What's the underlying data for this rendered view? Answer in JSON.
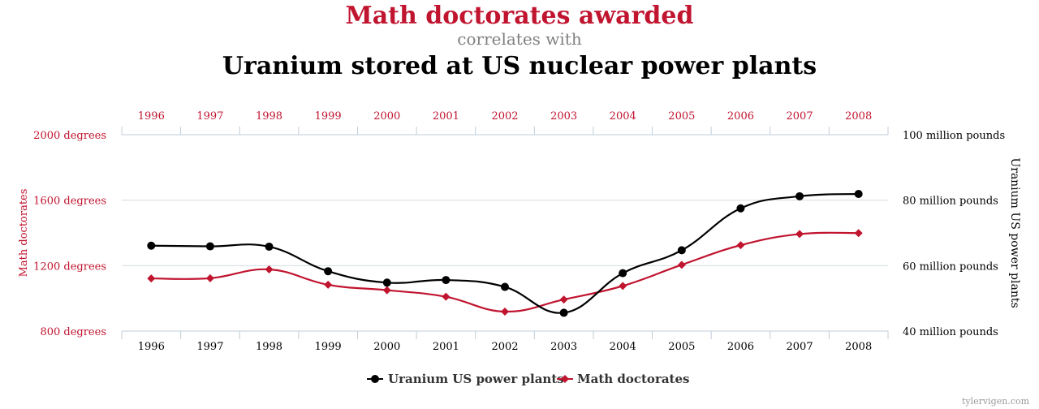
{
  "chart_data": {
    "type": "line",
    "title": "Math doctorates awarded",
    "subtitle": "correlates with",
    "title2": "Uranium stored at US nuclear power plants",
    "x": [
      "1996",
      "1997",
      "1998",
      "1999",
      "2000",
      "2001",
      "2002",
      "2003",
      "2004",
      "2005",
      "2006",
      "2007",
      "2008"
    ],
    "series": [
      {
        "name": "Uranium US power plants",
        "axis": "right",
        "color": "#000000",
        "marker": "circle",
        "values": [
          66.1,
          65.9,
          65.8,
          58.3,
          54.8,
          55.6,
          53.5,
          45.6,
          57.7,
          64.7,
          77.5,
          81.2,
          81.9
        ]
      },
      {
        "name": "Math doctorates",
        "axis": "left",
        "color": "#c0142f",
        "marker": "diamond",
        "values": [
          1122,
          1123,
          1177,
          1083,
          1050,
          1010,
          919,
          993,
          1076,
          1205,
          1325,
          1393,
          1399
        ]
      }
    ],
    "ylabel_left": "Math doctorates",
    "ylabel_right": "Uranium US power plants",
    "ylim_left": [
      800,
      2000
    ],
    "ylim_right": [
      40,
      100
    ],
    "yticks_left": [
      {
        "value": 800,
        "label": "800 degrees"
      },
      {
        "value": 1200,
        "label": "1200 degrees"
      },
      {
        "value": 1600,
        "label": "1600 degrees"
      },
      {
        "value": 2000,
        "label": "2000 degrees"
      }
    ],
    "yticks_right": [
      {
        "value": 40,
        "label": "40 million pounds"
      },
      {
        "value": 60,
        "label": "60 million pounds"
      },
      {
        "value": 80,
        "label": "80 million pounds"
      },
      {
        "value": 100,
        "label": "100 million pounds"
      }
    ],
    "grid": true,
    "legend_position": "bottom-center",
    "credit": "tylervigen.com"
  }
}
